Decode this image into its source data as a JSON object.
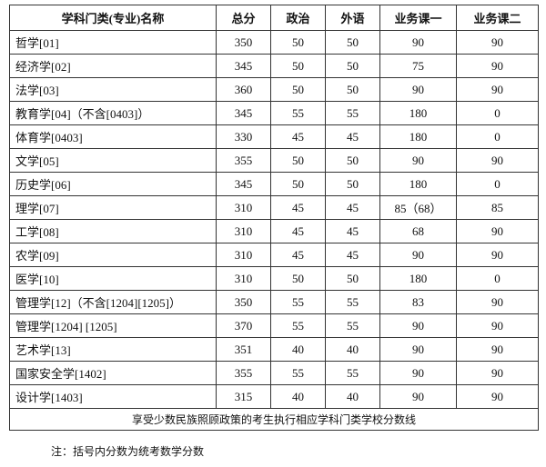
{
  "table": {
    "header": [
      "学科门类(专业)名称",
      "总分",
      "政治",
      "外语",
      "业务课一",
      "业务课二"
    ],
    "rows": [
      [
        "哲学[01]",
        350,
        50,
        50,
        90,
        90
      ],
      [
        "经济学[02]",
        345,
        50,
        50,
        75,
        90
      ],
      [
        "法学[03]",
        360,
        50,
        50,
        90,
        90
      ],
      [
        "教育学[04]（不含[0403]）",
        345,
        55,
        55,
        180,
        0
      ],
      [
        "体育学[0403]",
        330,
        45,
        45,
        180,
        0
      ],
      [
        "文学[05]",
        355,
        50,
        50,
        90,
        90
      ],
      [
        "历史学[06]",
        345,
        50,
        50,
        180,
        0
      ],
      [
        "理学[07]",
        310,
        45,
        45,
        "85（68）",
        85
      ],
      [
        "工学[08]",
        310,
        45,
        45,
        68,
        90
      ],
      [
        "农学[09]",
        310,
        45,
        45,
        90,
        90
      ],
      [
        "医学[10]",
        310,
        50,
        50,
        180,
        0
      ],
      [
        "管理学[12]（不含[1204][1205]）",
        350,
        55,
        55,
        83,
        90
      ],
      [
        "管理学[1204] [1205]",
        370,
        55,
        55,
        90,
        90
      ],
      [
        "艺术学[13]",
        351,
        40,
        40,
        90,
        90
      ],
      [
        "国家安全学[1402]",
        355,
        55,
        55,
        90,
        90
      ],
      [
        "设计学[1403]",
        315,
        40,
        40,
        90,
        90
      ]
    ],
    "footer": "享受少数民族照顾政策的考生执行相应学科门类学校分数线"
  },
  "note": "注：括号内分数为统考数学分数"
}
